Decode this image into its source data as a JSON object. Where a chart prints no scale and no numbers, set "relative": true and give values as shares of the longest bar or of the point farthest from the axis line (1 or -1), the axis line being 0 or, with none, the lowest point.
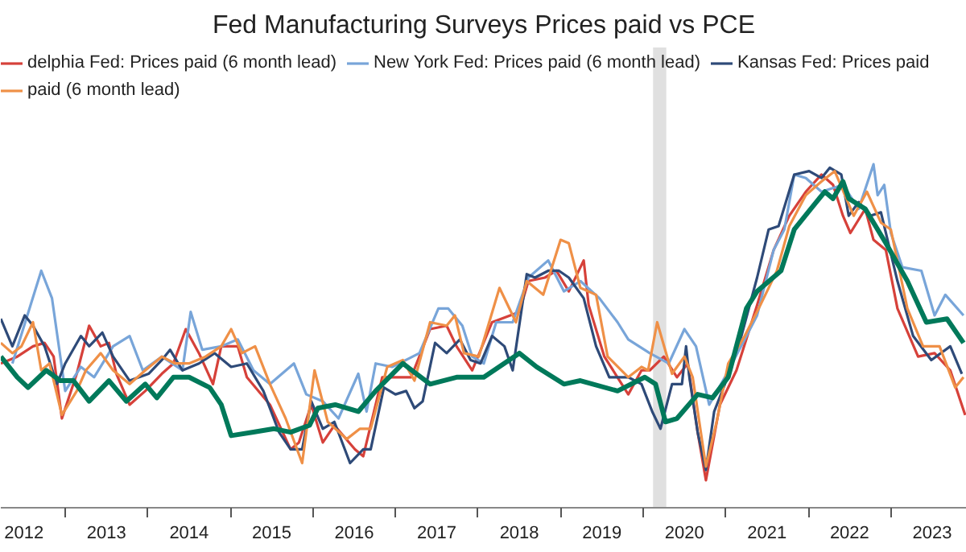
{
  "chart_data": {
    "type": "line",
    "title": "Fed Manufacturing Surveys Prices paid vs PCE",
    "relative": true,
    "legend": "top",
    "grid": false,
    "marker": "none",
    "line_style": "solid",
    "xlim": [
      2012.22,
      2023.92
    ],
    "xticks": [
      {
        "value": 2012.5,
        "label": "2012"
      },
      {
        "value": 2013,
        "label": null
      },
      {
        "value": 2013.5,
        "label": "2013"
      },
      {
        "value": 2014,
        "label": null
      },
      {
        "value": 2014.5,
        "label": "2014"
      },
      {
        "value": 2015,
        "label": null
      },
      {
        "value": 2015.5,
        "label": "2015"
      },
      {
        "value": 2016,
        "label": null
      },
      {
        "value": 2016.5,
        "label": "2016"
      },
      {
        "value": 2017,
        "label": null
      },
      {
        "value": 2017.5,
        "label": "2017"
      },
      {
        "value": 2018,
        "label": null
      },
      {
        "value": 2018.5,
        "label": "2018"
      },
      {
        "value": 2019,
        "label": null
      },
      {
        "value": 2019.5,
        "label": "2019"
      },
      {
        "value": 2020,
        "label": null
      },
      {
        "value": 2020.5,
        "label": "2020"
      },
      {
        "value": 2021,
        "label": null
      },
      {
        "value": 2021.5,
        "label": "2021"
      },
      {
        "value": 2022,
        "label": null
      },
      {
        "value": 2022.5,
        "label": "2022"
      },
      {
        "value": 2023,
        "label": null
      },
      {
        "value": 2023.5,
        "label": "2023"
      }
    ],
    "bands": [
      {
        "axis": "x",
        "from": 2020.12,
        "to": 2020.28,
        "color": "#e0e0e0"
      }
    ],
    "series": [
      {
        "name": "delphia Fed: Prices paid (6 month lead)",
        "color": "#d6413a",
        "x": [
          2012.22,
          2012.42,
          2012.61,
          2012.75,
          2012.86,
          2012.96,
          2013.14,
          2013.29,
          2013.43,
          2013.53,
          2013.62,
          2013.78,
          2013.97,
          2014.17,
          2014.31,
          2014.46,
          2014.62,
          2014.79,
          2014.89,
          2015.09,
          2015.2,
          2015.48,
          2015.73,
          2015.83,
          2015.98,
          2016.12,
          2016.26,
          2016.51,
          2016.61,
          2016.84,
          2017.0,
          2017.19,
          2017.42,
          2017.62,
          2017.74,
          2017.93,
          2018.17,
          2018.5,
          2018.61,
          2018.81,
          2018.95,
          2019.1,
          2019.28,
          2019.34,
          2019.53,
          2019.82,
          2019.98,
          2020.08,
          2020.25,
          2020.41,
          2020.54,
          2020.66,
          2020.76,
          2020.93,
          2021.13,
          2021.38,
          2021.58,
          2021.77,
          2021.97,
          2022.16,
          2022.3,
          2022.42,
          2022.51,
          2022.69,
          2022.79,
          2022.94,
          2023.08,
          2023.33,
          2023.53,
          2023.72,
          2023.9
        ],
        "values": [
          0.42,
          0.44,
          0.47,
          0.48,
          0.44,
          0.26,
          0.39,
          0.53,
          0.47,
          0.48,
          0.39,
          0.3,
          0.34,
          0.39,
          0.42,
          0.52,
          0.45,
          0.36,
          0.47,
          0.47,
          0.38,
          0.3,
          0.17,
          0.19,
          0.3,
          0.19,
          0.24,
          0.17,
          0.15,
          0.38,
          0.38,
          0.38,
          0.52,
          0.53,
          0.47,
          0.4,
          0.54,
          0.57,
          0.66,
          0.67,
          0.69,
          0.63,
          0.72,
          0.59,
          0.44,
          0.33,
          0.4,
          0.4,
          0.44,
          0.38,
          0.42,
          0.22,
          0.08,
          0.3,
          0.4,
          0.59,
          0.75,
          0.85,
          0.92,
          0.97,
          0.94,
          0.85,
          0.8,
          0.87,
          0.78,
          0.75,
          0.58,
          0.44,
          0.45,
          0.4,
          0.27
        ]
      },
      {
        "name": "New York Fed: Prices paid (6 month lead)",
        "color": "#78a5d9",
        "x": [
          2012.36,
          2012.71,
          2012.84,
          2013.0,
          2013.19,
          2013.35,
          2013.58,
          2013.78,
          2013.94,
          2014.17,
          2014.42,
          2014.52,
          2014.66,
          2014.89,
          2015.09,
          2015.28,
          2015.48,
          2015.77,
          2015.92,
          2016.12,
          2016.31,
          2016.55,
          2016.65,
          2016.76,
          2016.96,
          2017.29,
          2017.52,
          2017.64,
          2017.81,
          2017.93,
          2018.07,
          2018.22,
          2018.42,
          2018.61,
          2018.85,
          2019.04,
          2019.24,
          2019.47,
          2019.69,
          2019.82,
          2020.08,
          2020.31,
          2020.5,
          2020.64,
          2020.8,
          2020.99,
          2021.23,
          2021.38,
          2021.58,
          2021.71,
          2021.83,
          2021.97,
          2022.16,
          2022.42,
          2022.61,
          2022.79,
          2022.84,
          2022.92,
          2023.0,
          2023.14,
          2023.37,
          2023.53,
          2023.66,
          2023.88
        ],
        "values": [
          0.42,
          0.69,
          0.61,
          0.34,
          0.41,
          0.38,
          0.47,
          0.5,
          0.4,
          0.44,
          0.4,
          0.57,
          0.46,
          0.47,
          0.49,
          0.4,
          0.36,
          0.42,
          0.33,
          0.31,
          0.26,
          0.39,
          0.28,
          0.42,
          0.41,
          0.45,
          0.58,
          0.58,
          0.53,
          0.44,
          0.42,
          0.54,
          0.54,
          0.67,
          0.72,
          0.63,
          0.66,
          0.61,
          0.54,
          0.49,
          0.45,
          0.42,
          0.52,
          0.47,
          0.3,
          0.38,
          0.49,
          0.56,
          0.75,
          0.81,
          0.97,
          0.96,
          0.92,
          0.94,
          0.87,
          1.0,
          0.91,
          0.94,
          0.8,
          0.7,
          0.69,
          0.56,
          0.62,
          0.56
        ]
      },
      {
        "name": "Kansas Fed: Prices paid",
        "color": "#2e4a78",
        "x": [
          2012.22,
          2012.36,
          2012.51,
          2012.61,
          2012.75,
          2012.9,
          2013.0,
          2013.19,
          2013.29,
          2013.45,
          2013.58,
          2013.78,
          2014.01,
          2014.17,
          2014.27,
          2014.42,
          2014.62,
          2014.81,
          2015.01,
          2015.2,
          2015.4,
          2015.59,
          2015.73,
          2015.87,
          2015.98,
          2016.12,
          2016.26,
          2016.45,
          2016.61,
          2016.7,
          2016.86,
          2017.0,
          2017.13,
          2017.23,
          2017.33,
          2017.48,
          2017.62,
          2017.78,
          2017.91,
          2018.03,
          2018.17,
          2018.32,
          2018.42,
          2018.59,
          2018.69,
          2018.85,
          2018.98,
          2019.1,
          2019.28,
          2019.43,
          2019.59,
          2019.82,
          2019.98,
          2020.11,
          2020.21,
          2020.35,
          2020.47,
          2020.52,
          2020.56,
          2020.66,
          2020.76,
          2020.86,
          2020.99,
          2021.19,
          2021.38,
          2021.52,
          2021.64,
          2021.83,
          2022.01,
          2022.16,
          2022.26,
          2022.4,
          2022.49,
          2022.61,
          2022.75,
          2022.88,
          2023.08,
          2023.27,
          2023.49,
          2023.72,
          2023.86
        ],
        "values": [
          0.55,
          0.47,
          0.56,
          0.53,
          0.47,
          0.36,
          0.42,
          0.5,
          0.47,
          0.51,
          0.44,
          0.37,
          0.39,
          0.43,
          0.46,
          0.4,
          0.42,
          0.45,
          0.41,
          0.42,
          0.34,
          0.22,
          0.17,
          0.17,
          0.31,
          0.23,
          0.25,
          0.13,
          0.17,
          0.17,
          0.35,
          0.33,
          0.34,
          0.29,
          0.31,
          0.48,
          0.45,
          0.49,
          0.43,
          0.42,
          0.5,
          0.47,
          0.4,
          0.68,
          0.67,
          0.69,
          0.69,
          0.67,
          0.61,
          0.47,
          0.38,
          0.38,
          0.36,
          0.28,
          0.23,
          0.36,
          0.36,
          0.47,
          0.38,
          0.22,
          0.11,
          0.28,
          0.36,
          0.5,
          0.67,
          0.81,
          0.82,
          0.97,
          0.98,
          0.96,
          0.99,
          0.97,
          0.85,
          0.89,
          0.85,
          0.86,
          0.66,
          0.5,
          0.43,
          0.47,
          0.39
        ]
      },
      {
        "name": "paid (6 month lead)",
        "color": "#ef9047",
        "x": [
          2012.22,
          2012.36,
          2012.47,
          2012.61,
          2012.71,
          2012.81,
          2012.96,
          2013.14,
          2013.25,
          2013.43,
          2013.58,
          2013.78,
          2013.97,
          2014.17,
          2014.33,
          2014.5,
          2014.7,
          2014.89,
          2015.01,
          2015.14,
          2015.3,
          2015.48,
          2015.67,
          2015.87,
          2016.02,
          2016.18,
          2016.41,
          2016.57,
          2016.7,
          2016.9,
          2017.09,
          2017.23,
          2017.42,
          2017.62,
          2017.72,
          2017.83,
          2018.01,
          2018.26,
          2018.46,
          2018.59,
          2018.79,
          2019.0,
          2019.1,
          2019.24,
          2019.43,
          2019.57,
          2019.82,
          2019.98,
          2020.06,
          2020.17,
          2020.35,
          2020.5,
          2020.6,
          2020.76,
          2020.89,
          2021.03,
          2021.23,
          2021.42,
          2021.62,
          2021.77,
          2021.97,
          2022.16,
          2022.32,
          2022.55,
          2022.71,
          2022.88,
          2023.0,
          2023.2,
          2023.39,
          2023.59,
          2023.78,
          2023.88
        ],
        "values": [
          0.48,
          0.45,
          0.47,
          0.54,
          0.4,
          0.42,
          0.27,
          0.34,
          0.4,
          0.45,
          0.4,
          0.36,
          0.4,
          0.44,
          0.42,
          0.42,
          0.44,
          0.47,
          0.52,
          0.45,
          0.47,
          0.36,
          0.26,
          0.13,
          0.4,
          0.25,
          0.2,
          0.23,
          0.23,
          0.41,
          0.43,
          0.37,
          0.54,
          0.53,
          0.56,
          0.45,
          0.44,
          0.64,
          0.54,
          0.66,
          0.62,
          0.78,
          0.77,
          0.64,
          0.62,
          0.44,
          0.38,
          0.41,
          0.4,
          0.54,
          0.39,
          0.44,
          0.38,
          0.12,
          0.25,
          0.42,
          0.5,
          0.59,
          0.69,
          0.82,
          0.91,
          0.95,
          0.98,
          0.85,
          0.92,
          0.83,
          0.81,
          0.58,
          0.47,
          0.47,
          0.35,
          0.38
        ]
      },
      {
        "color": "#00795a",
        "x": [
          2012.22,
          2012.42,
          2012.55,
          2012.77,
          2012.94,
          2013.1,
          2013.29,
          2013.53,
          2013.74,
          2013.97,
          2014.11,
          2014.31,
          2014.5,
          2014.75,
          2014.89,
          2015.01,
          2015.28,
          2015.53,
          2015.73,
          2015.96,
          2016.06,
          2016.27,
          2016.55,
          2016.76,
          2017.09,
          2017.42,
          2017.74,
          2018.07,
          2018.5,
          2018.71,
          2019.04,
          2019.24,
          2019.69,
          2020.02,
          2020.15,
          2020.27,
          2020.41,
          2020.66,
          2020.84,
          2021.03,
          2021.25,
          2021.38,
          2021.67,
          2021.83,
          2022.03,
          2022.2,
          2022.3,
          2022.42,
          2022.49,
          2022.69,
          2022.94,
          2023.2,
          2023.43,
          2023.68,
          2023.88
        ],
        "values": [
          0.44,
          0.38,
          0.35,
          0.4,
          0.37,
          0.37,
          0.31,
          0.37,
          0.31,
          0.36,
          0.32,
          0.38,
          0.38,
          0.35,
          0.3,
          0.21,
          0.22,
          0.23,
          0.22,
          0.24,
          0.29,
          0.3,
          0.28,
          0.34,
          0.42,
          0.36,
          0.38,
          0.38,
          0.45,
          0.41,
          0.36,
          0.37,
          0.34,
          0.38,
          0.36,
          0.25,
          0.26,
          0.33,
          0.32,
          0.38,
          0.58,
          0.63,
          0.69,
          0.81,
          0.87,
          0.92,
          0.9,
          0.95,
          0.9,
          0.87,
          0.77,
          0.66,
          0.54,
          0.55,
          0.48
        ]
      }
    ]
  }
}
